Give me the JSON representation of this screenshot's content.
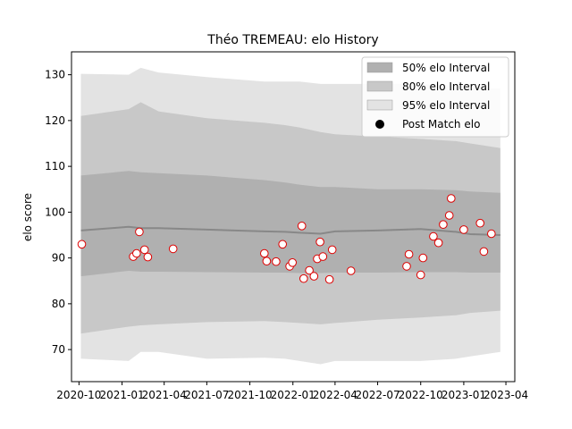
{
  "chart_data": {
    "type": "scatter",
    "title": "Théo TREMEAU: elo History",
    "xlabel": "",
    "ylabel": "elo score",
    "x_type": "date",
    "xlim": [
      "2020-09-15",
      "2023-04-20"
    ],
    "ylim": [
      63,
      135
    ],
    "x_ticks": [
      {
        "date": "2020-10-01",
        "label": "2020-10"
      },
      {
        "date": "2021-01-01",
        "label": "2021-01"
      },
      {
        "date": "2021-04-01",
        "label": "2021-04"
      },
      {
        "date": "2021-07-01",
        "label": "2021-07"
      },
      {
        "date": "2021-10-01",
        "label": "2021-10"
      },
      {
        "date": "2022-01-01",
        "label": "2022-01"
      },
      {
        "date": "2022-04-01",
        "label": "2022-04"
      },
      {
        "date": "2022-07-01",
        "label": "2022-07"
      },
      {
        "date": "2022-10-01",
        "label": "2022-10"
      },
      {
        "date": "2023-01-01",
        "label": "2023-01"
      },
      {
        "date": "2023-04-01",
        "label": "2023-04"
      }
    ],
    "y_ticks": [
      70,
      80,
      90,
      100,
      110,
      120,
      130
    ],
    "grid": false,
    "legend_position": "top-right",
    "legend": [
      {
        "label": "50% elo Interval",
        "kind": "band",
        "color": "#b0b0b0"
      },
      {
        "label": "80% elo Interval",
        "kind": "band",
        "color": "#c8c8c8"
      },
      {
        "label": "95% elo Interval",
        "kind": "band",
        "color": "#e3e3e3"
      },
      {
        "label": "Post Match elo",
        "kind": "marker",
        "color": "#000000"
      }
    ],
    "colors": {
      "band95": "#e3e3e3",
      "band80": "#c8c8c8",
      "band50": "#b0b0b0",
      "mean_line": "#888888",
      "point_fill": "#ffffff",
      "point_edge": "#dd0000"
    },
    "interval_bands": {
      "x": [
        "2020-10-05",
        "2021-01-15",
        "2021-02-10",
        "2021-03-20",
        "2021-07-01",
        "2021-11-01",
        "2021-12-15",
        "2022-01-15",
        "2022-03-01",
        "2022-04-01",
        "2022-07-01",
        "2022-10-01",
        "2022-12-15",
        "2023-01-15",
        "2023-03-20"
      ],
      "mean": [
        96.0,
        96.8,
        96.5,
        96.5,
        96.2,
        95.8,
        95.7,
        95.5,
        95.3,
        95.8,
        96.0,
        96.3,
        95.7,
        95.2,
        95.0
      ],
      "low50": [
        86.0,
        87.2,
        87.0,
        87.0,
        86.9,
        86.8,
        86.8,
        86.7,
        86.7,
        86.8,
        86.8,
        86.9,
        86.9,
        86.8,
        86.8
      ],
      "high50": [
        108.0,
        109.0,
        108.7,
        108.5,
        108.0,
        107.0,
        106.5,
        106.0,
        105.5,
        105.5,
        105.0,
        105.0,
        104.8,
        104.5,
        104.2
      ],
      "low80": [
        73.5,
        75.0,
        75.3,
        75.5,
        76.0,
        76.2,
        76.0,
        75.8,
        75.5,
        75.8,
        76.5,
        77.0,
        77.5,
        78.0,
        78.5
      ],
      "high80": [
        121.0,
        122.5,
        124.0,
        122.0,
        120.5,
        119.5,
        119.0,
        118.5,
        117.5,
        117.0,
        116.5,
        116.0,
        115.5,
        115.0,
        114.0
      ],
      "low95": [
        68.0,
        67.5,
        69.5,
        69.5,
        68.0,
        68.2,
        68.0,
        67.5,
        66.8,
        67.5,
        67.5,
        67.5,
        68.0,
        68.5,
        69.5
      ],
      "high95": [
        130.2,
        130.0,
        131.5,
        130.5,
        129.5,
        128.5,
        128.5,
        128.5,
        128.0,
        128.0,
        128.0,
        128.0,
        127.5,
        127.0,
        127.0
      ]
    },
    "points": [
      {
        "x": "2020-10-07",
        "y": 93.0
      },
      {
        "x": "2021-01-25",
        "y": 90.3
      },
      {
        "x": "2021-02-01",
        "y": 91.0
      },
      {
        "x": "2021-02-07",
        "y": 95.7
      },
      {
        "x": "2021-02-18",
        "y": 91.8
      },
      {
        "x": "2021-02-25",
        "y": 90.2
      },
      {
        "x": "2021-04-20",
        "y": 92.0
      },
      {
        "x": "2021-11-01",
        "y": 91.0
      },
      {
        "x": "2021-11-06",
        "y": 89.3
      },
      {
        "x": "2021-11-26",
        "y": 89.2
      },
      {
        "x": "2021-12-10",
        "y": 93.0
      },
      {
        "x": "2021-12-25",
        "y": 88.2
      },
      {
        "x": "2021-12-31",
        "y": 89.0
      },
      {
        "x": "2022-01-20",
        "y": 97.0
      },
      {
        "x": "2022-01-24",
        "y": 85.5
      },
      {
        "x": "2022-02-05",
        "y": 87.3
      },
      {
        "x": "2022-02-15",
        "y": 86.0
      },
      {
        "x": "2022-02-22",
        "y": 89.8
      },
      {
        "x": "2022-02-28",
        "y": 93.5
      },
      {
        "x": "2022-03-06",
        "y": 90.3
      },
      {
        "x": "2022-03-20",
        "y": 85.3
      },
      {
        "x": "2022-03-26",
        "y": 91.8
      },
      {
        "x": "2022-05-05",
        "y": 87.2
      },
      {
        "x": "2022-09-01",
        "y": 88.2
      },
      {
        "x": "2022-09-06",
        "y": 90.8
      },
      {
        "x": "2022-10-01",
        "y": 86.3
      },
      {
        "x": "2022-10-06",
        "y": 90.0
      },
      {
        "x": "2022-10-28",
        "y": 94.7
      },
      {
        "x": "2022-11-08",
        "y": 93.3
      },
      {
        "x": "2022-11-18",
        "y": 97.3
      },
      {
        "x": "2022-12-01",
        "y": 99.3
      },
      {
        "x": "2022-12-05",
        "y": 103.0
      },
      {
        "x": "2023-01-01",
        "y": 96.2
      },
      {
        "x": "2023-02-05",
        "y": 97.6
      },
      {
        "x": "2023-02-13",
        "y": 91.4
      },
      {
        "x": "2023-03-01",
        "y": 95.3
      }
    ]
  }
}
